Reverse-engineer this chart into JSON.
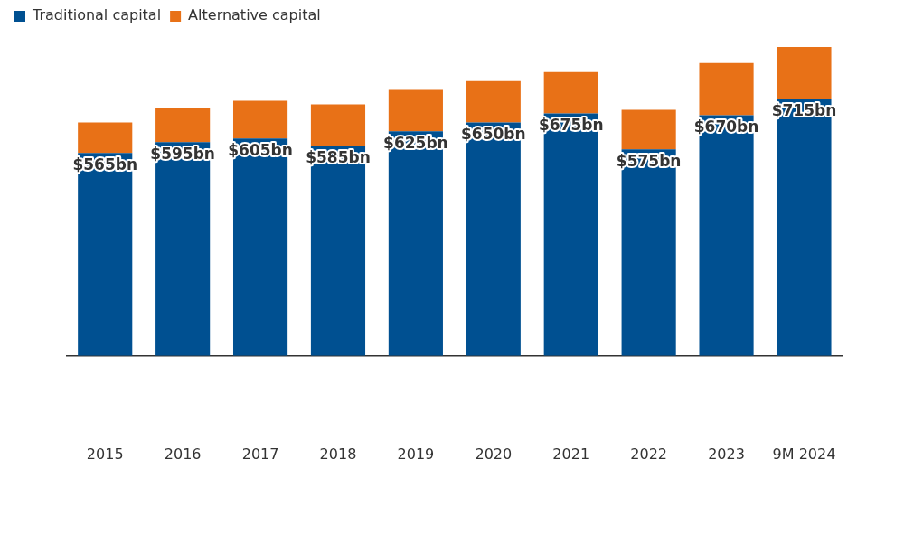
{
  "chart_data": {
    "type": "bar",
    "stacked": true,
    "legend": "top left",
    "categories": [
      "2015",
      "2016",
      "2017",
      "2018",
      "2019",
      "2020",
      "2021",
      "2022",
      "2023",
      "9M 2024"
    ],
    "series": [
      {
        "name": "Traditional capital",
        "color": "#005091",
        "values": [
          565,
          595,
          605,
          585,
          625,
          650,
          675,
          575,
          670,
          715
        ],
        "value_labels": [
          "$565bn",
          "$595bn",
          "$605bn",
          "$585bn",
          "$625bn",
          "$650bn",
          "$675bn",
          "$575bn",
          "$670bn",
          "$715bn"
        ]
      },
      {
        "name": "Alternative capital",
        "color": "#e87117",
        "values": [
          85,
          95,
          105,
          115,
          115,
          115,
          115,
          110,
          145,
          145
        ]
      }
    ]
  }
}
